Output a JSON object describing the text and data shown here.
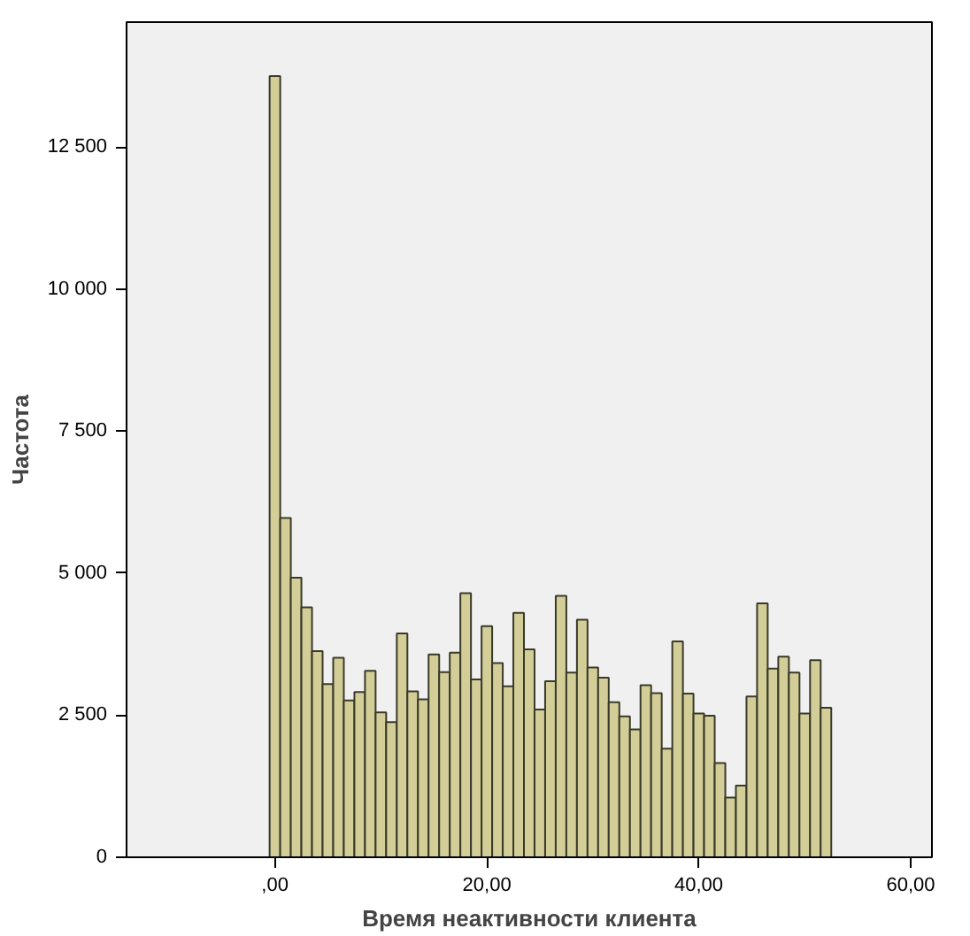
{
  "chart_data": {
    "type": "histogram",
    "xlabel": "Время неактивности клиента",
    "ylabel": "Частота",
    "bins": [
      -0.5,
      0.5,
      1.5,
      2.5,
      3.5,
      4.5,
      5.5,
      6.5,
      7.5,
      8.5,
      9.5,
      10.5,
      11.5,
      12.5,
      13.5,
      14.5,
      15.5,
      16.5,
      17.5,
      18.5,
      19.5,
      20.5,
      21.5,
      22.5,
      23.5,
      24.5,
      25.5,
      26.5,
      27.5,
      28.5,
      29.5,
      30.5,
      31.5,
      32.5,
      33.5,
      34.5,
      35.5,
      36.5,
      37.5,
      38.5,
      39.5,
      40.5,
      41.5,
      42.5,
      43.5,
      44.5,
      45.5,
      46.5,
      47.5,
      48.5,
      49.5,
      50.5,
      51.5,
      52.5
    ],
    "values": [
      13750,
      5970,
      4920,
      4400,
      3630,
      3050,
      3510,
      2760,
      2910,
      3280,
      2550,
      2380,
      3940,
      2920,
      2780,
      3570,
      3260,
      3600,
      4650,
      3130,
      4070,
      3420,
      3010,
      4300,
      3660,
      2600,
      3100,
      4600,
      3250,
      4180,
      3340,
      3160,
      2730,
      2480,
      2250,
      3030,
      2890,
      1910,
      3800,
      2880,
      2530,
      2490,
      1660,
      1050,
      1260,
      2830,
      4470,
      3320,
      3530,
      3250,
      2530,
      3470,
      2630
    ],
    "color": "#d3ce97",
    "xlim": [
      -14,
      62
    ],
    "ylim": [
      0,
      14700
    ],
    "xticks": [
      {
        "value": 0,
        "label": ",00"
      },
      {
        "value": 20,
        "label": "20,00"
      },
      {
        "value": 40,
        "label": "40,00"
      },
      {
        "value": 60,
        "label": "60,00"
      }
    ],
    "yticks": [
      0,
      {
        "value": 2500,
        "label": "2 500"
      },
      {
        "value": 5000,
        "label": "5 000"
      },
      {
        "value": 7500,
        "label": "7 500"
      },
      {
        "value": 10000,
        "label": "10 000"
      },
      {
        "value": 12500,
        "label": "12 500"
      }
    ],
    "grid": false
  }
}
